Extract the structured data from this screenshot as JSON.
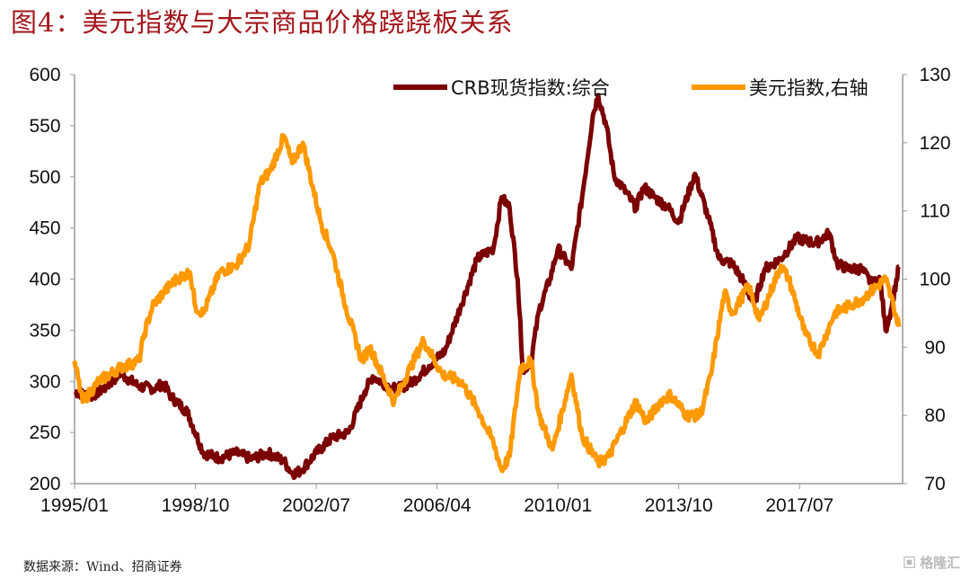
{
  "title": "图4：美元指数与大宗商品价格跷跷板关系",
  "source": "数据来源：Wind、招商证券",
  "watermark": "格隆汇",
  "chart_data": {
    "type": "line",
    "title": "",
    "xlabel": "",
    "ylabel": "",
    "x_ticks": [
      "1995/01",
      "1998/10",
      "2002/07",
      "2006/04",
      "2010/01",
      "2013/10",
      "2017/07"
    ],
    "ylim_left": [
      200,
      600
    ],
    "yticks_left": [
      200,
      250,
      300,
      350,
      400,
      450,
      500,
      550,
      600
    ],
    "ylim_right": [
      70,
      130
    ],
    "yticks_right": [
      70,
      80,
      90,
      100,
      110,
      120,
      130
    ],
    "grid": false,
    "legend_position": "top-right",
    "series": [
      {
        "name": "CRB现货指数:综合",
        "axis": "left",
        "color": "#7b0000",
        "points": [
          [
            "1995-01",
            290
          ],
          [
            "1995-07",
            285
          ],
          [
            "1996-01",
            295
          ],
          [
            "1996-06",
            308
          ],
          [
            "1997-01",
            295
          ],
          [
            "1997-07",
            293
          ],
          [
            "1997-10",
            298
          ],
          [
            "1998-01",
            285
          ],
          [
            "1998-07",
            270
          ],
          [
            "1999-01",
            230
          ],
          [
            "1999-07",
            225
          ],
          [
            "2000-01",
            230
          ],
          [
            "2000-07",
            224
          ],
          [
            "2001-01",
            230
          ],
          [
            "2001-07",
            222
          ],
          [
            "2001-10",
            210
          ],
          [
            "2002-01",
            212
          ],
          [
            "2002-07",
            230
          ],
          [
            "2003-01",
            245
          ],
          [
            "2003-07",
            250
          ],
          [
            "2004-01",
            290
          ],
          [
            "2004-04",
            305
          ],
          [
            "2004-10",
            295
          ],
          [
            "2005-01",
            292
          ],
          [
            "2005-07",
            300
          ],
          [
            "2006-01",
            315
          ],
          [
            "2006-07",
            330
          ],
          [
            "2007-01",
            375
          ],
          [
            "2007-07",
            420
          ],
          [
            "2008-01",
            430
          ],
          [
            "2008-04",
            480
          ],
          [
            "2008-07",
            470
          ],
          [
            "2008-10",
            400
          ],
          [
            "2008-12",
            310
          ],
          [
            "2009-03",
            320
          ],
          [
            "2009-06",
            370
          ],
          [
            "2009-10",
            400
          ],
          [
            "2010-01",
            430
          ],
          [
            "2010-06",
            410
          ],
          [
            "2010-10",
            480
          ],
          [
            "2011-02",
            560
          ],
          [
            "2011-04",
            580
          ],
          [
            "2011-07",
            550
          ],
          [
            "2011-10",
            500
          ],
          [
            "2012-01",
            490
          ],
          [
            "2012-06",
            470
          ],
          [
            "2012-09",
            490
          ],
          [
            "2013-01",
            480
          ],
          [
            "2013-06",
            470
          ],
          [
            "2013-10",
            456
          ],
          [
            "2014-04",
            503
          ],
          [
            "2014-09",
            460
          ],
          [
            "2015-01",
            420
          ],
          [
            "2015-06",
            415
          ],
          [
            "2015-10",
            398
          ],
          [
            "2016-02",
            375
          ],
          [
            "2016-06",
            410
          ],
          [
            "2016-12",
            420
          ],
          [
            "2017-06",
            440
          ],
          [
            "2018-01",
            435
          ],
          [
            "2018-06",
            445
          ],
          [
            "2018-09",
            415
          ],
          [
            "2019-01",
            410
          ],
          [
            "2019-06",
            410
          ],
          [
            "2019-10",
            395
          ],
          [
            "2020-01",
            400
          ],
          [
            "2020-03",
            350
          ],
          [
            "2020-05",
            370
          ],
          [
            "2020-08",
            412
          ]
        ]
      },
      {
        "name": "美元指数,右轴",
        "axis": "right",
        "color": "#ff9900",
        "points": [
          [
            "1995-01",
            88
          ],
          [
            "1995-04",
            82
          ],
          [
            "1995-10",
            85
          ],
          [
            "1996-06",
            87
          ],
          [
            "1997-01",
            88
          ],
          [
            "1997-03",
            92
          ],
          [
            "1997-06",
            96
          ],
          [
            "1997-10",
            98
          ],
          [
            "1998-03",
            100
          ],
          [
            "1998-08",
            101
          ],
          [
            "1998-10",
            96
          ],
          [
            "1999-01",
            95
          ],
          [
            "1999-07",
            101
          ],
          [
            "2000-01",
            102
          ],
          [
            "2000-06",
            105
          ],
          [
            "2000-10",
            114
          ],
          [
            "2001-02",
            116
          ],
          [
            "2001-07",
            121
          ],
          [
            "2001-10",
            117
          ],
          [
            "2002-02",
            120
          ],
          [
            "2002-06",
            113
          ],
          [
            "2002-09",
            108
          ],
          [
            "2003-01",
            104
          ],
          [
            "2003-06",
            96
          ],
          [
            "2003-12",
            88
          ],
          [
            "2004-03",
            90
          ],
          [
            "2004-12",
            82
          ],
          [
            "2005-06",
            87
          ],
          [
            "2005-11",
            91
          ],
          [
            "2006-06",
            86
          ],
          [
            "2007-01",
            85
          ],
          [
            "2007-07",
            81
          ],
          [
            "2008-01",
            76
          ],
          [
            "2008-04",
            72
          ],
          [
            "2008-07",
            74
          ],
          [
            "2008-11",
            87
          ],
          [
            "2009-03",
            88
          ],
          [
            "2009-06",
            80
          ],
          [
            "2009-11",
            75
          ],
          [
            "2010-06",
            86
          ],
          [
            "2010-10",
            77
          ],
          [
            "2011-04",
            73
          ],
          [
            "2011-08",
            74
          ],
          [
            "2012-06",
            82
          ],
          [
            "2012-10",
            79
          ],
          [
            "2013-03",
            82
          ],
          [
            "2013-07",
            83
          ],
          [
            "2014-01",
            80
          ],
          [
            "2014-06",
            80
          ],
          [
            "2014-10",
            86
          ],
          [
            "2015-03",
            98
          ],
          [
            "2015-06",
            95
          ],
          [
            "2015-12",
            99
          ],
          [
            "2016-04",
            94
          ],
          [
            "2016-12",
            102
          ],
          [
            "2017-03",
            100
          ],
          [
            "2017-09",
            92
          ],
          [
            "2018-02",
            89
          ],
          [
            "2018-08",
            95
          ],
          [
            "2019-01",
            96
          ],
          [
            "2019-06",
            97
          ],
          [
            "2019-09",
            98
          ],
          [
            "2020-03",
            100
          ],
          [
            "2020-06",
            96
          ],
          [
            "2020-08",
            93
          ]
        ]
      }
    ]
  }
}
